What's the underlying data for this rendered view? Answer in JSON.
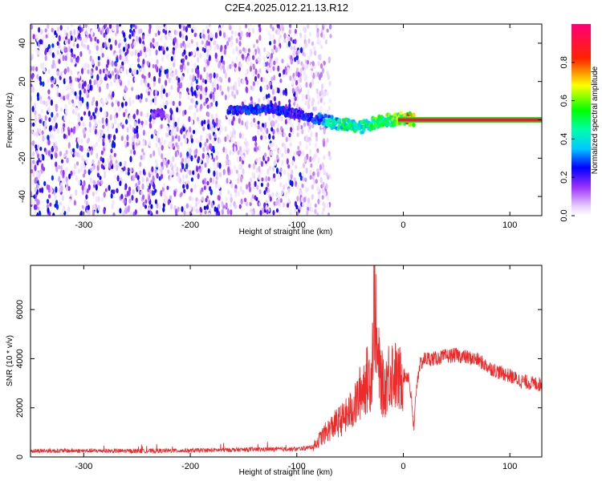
{
  "title": "C2E4.2025.012.21.13.R12",
  "chart_data": [
    {
      "type": "heatmap",
      "xlabel": "Height of straight line (km)",
      "ylabel": "Frequency (Hz)",
      "xlim": [
        -350,
        130
      ],
      "ylim": [
        -50,
        50
      ],
      "xticks": [
        -300,
        -200,
        -100,
        0,
        100
      ],
      "yticks": [
        -40,
        -20,
        0,
        20,
        40
      ],
      "colorbar": {
        "label": "Normalized spectral amplitude",
        "range": [
          0,
          1
        ],
        "ticks": [
          0.0,
          0.2,
          0.4,
          0.6,
          0.8
        ],
        "tick_labels": [
          "0.0",
          "0.2",
          "0.4",
          "0.6",
          "0.8"
        ],
        "colors": [
          "#ffffff",
          "#9b30ff",
          "#0000ff",
          "#00ffff",
          "#00ff00",
          "#ffff00",
          "#ff0000",
          "#ff0077"
        ]
      },
      "noise_region_km": [
        -350,
        -80
      ],
      "signal_ridge": [
        {
          "x": -235,
          "freq": 3,
          "amp": 0.2
        },
        {
          "x": -155,
          "freq": 5,
          "amp": 0.28
        },
        {
          "x": -125,
          "freq": 6,
          "amp": 0.3
        },
        {
          "x": -100,
          "freq": 3,
          "amp": 0.25
        },
        {
          "x": -80,
          "freq": 0,
          "amp": 0.3
        },
        {
          "x": -70,
          "freq": -1,
          "amp": 0.45
        },
        {
          "x": -60,
          "freq": -2,
          "amp": 0.5
        },
        {
          "x": -50,
          "freq": -3,
          "amp": 0.55
        },
        {
          "x": -40,
          "freq": -4,
          "amp": 0.5
        },
        {
          "x": -30,
          "freq": -2,
          "amp": 0.55
        },
        {
          "x": -20,
          "freq": 0,
          "amp": 0.6
        },
        {
          "x": -10,
          "freq": 0,
          "amp": 0.6
        },
        {
          "x": 0,
          "freq": 1,
          "amp": 0.7
        },
        {
          "x": 10,
          "freq": 0,
          "amp": 0.9
        },
        {
          "x": 50,
          "freq": 0,
          "amp": 0.95
        },
        {
          "x": 100,
          "freq": 0,
          "amp": 0.95
        },
        {
          "x": 130,
          "freq": 0,
          "amp": 0.95
        }
      ]
    },
    {
      "type": "line",
      "xlabel": "Height of straight line (km)",
      "ylabel": "SNR (10 * v/v)",
      "xlim": [
        -350,
        130
      ],
      "ylim": [
        0,
        7800
      ],
      "xticks": [
        -300,
        -200,
        -100,
        0,
        100
      ],
      "yticks": [
        0,
        2000,
        4000,
        6000
      ],
      "color": "#ee2a2a",
      "series": [
        {
          "x": [
            -350,
            -300,
            -250,
            -200,
            -150,
            -100,
            -85,
            -75,
            -65,
            -55,
            -45,
            -40,
            -35,
            -30,
            -27,
            -25,
            -22,
            -18,
            -15,
            -10,
            -5,
            0,
            5,
            8,
            10,
            12,
            15,
            20,
            30,
            40,
            50,
            60,
            70,
            80,
            90,
            100,
            110,
            120,
            130
          ],
          "values": [
            250,
            250,
            240,
            260,
            300,
            320,
            400,
            900,
            1300,
            1600,
            2100,
            2700,
            3100,
            3300,
            6800,
            4200,
            3400,
            2600,
            3300,
            3500,
            3100,
            3300,
            3300,
            2100,
            1000,
            2700,
            3700,
            4000,
            4000,
            4100,
            4150,
            4050,
            3950,
            3650,
            3450,
            3300,
            3100,
            3000,
            2950
          ]
        }
      ]
    }
  ]
}
